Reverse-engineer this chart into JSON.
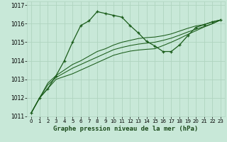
{
  "title": "Graphe pression niveau de la mer (hPa)",
  "bg_color": "#c8e8d8",
  "grid_color": "#b0d4c0",
  "line_color": "#1a5c1a",
  "marker_color": "#1a5c1a",
  "xlim": [
    -0.5,
    23.5
  ],
  "ylim": [
    1011,
    1017.2
  ],
  "xtick_vals": [
    0,
    1,
    2,
    3,
    4,
    5,
    6,
    7,
    8,
    9,
    10,
    11,
    12,
    13,
    14,
    15,
    16,
    17,
    18,
    19,
    20,
    21,
    22,
    23
  ],
  "ytick_vals": [
    1011,
    1012,
    1013,
    1014,
    1015,
    1016,
    1017
  ],
  "series": [
    [
      1011.2,
      1012.0,
      1012.5,
      1013.2,
      1014.0,
      1015.0,
      1015.9,
      1016.15,
      1016.65,
      1016.55,
      1016.45,
      1016.35,
      1015.9,
      1015.5,
      1015.05,
      1014.8,
      1014.5,
      1014.5,
      1014.85,
      1015.35,
      1015.8,
      1015.95,
      1016.1,
      1016.2
    ],
    [
      1011.2,
      1012.0,
      1012.8,
      1013.2,
      1013.5,
      1013.8,
      1014.0,
      1014.25,
      1014.5,
      1014.65,
      1014.85,
      1015.0,
      1015.1,
      1015.2,
      1015.25,
      1015.28,
      1015.35,
      1015.45,
      1015.6,
      1015.75,
      1015.88,
      1015.95,
      1016.1,
      1016.2
    ],
    [
      1011.2,
      1012.0,
      1012.7,
      1013.1,
      1013.35,
      1013.6,
      1013.8,
      1014.0,
      1014.2,
      1014.4,
      1014.6,
      1014.72,
      1014.82,
      1014.9,
      1014.95,
      1015.0,
      1015.1,
      1015.22,
      1015.38,
      1015.55,
      1015.7,
      1015.85,
      1016.0,
      1016.2
    ],
    [
      1011.2,
      1012.0,
      1012.5,
      1013.0,
      1013.15,
      1013.3,
      1013.5,
      1013.7,
      1013.9,
      1014.1,
      1014.3,
      1014.42,
      1014.52,
      1014.58,
      1014.62,
      1014.65,
      1014.82,
      1015.0,
      1015.2,
      1015.42,
      1015.62,
      1015.82,
      1016.0,
      1016.2
    ]
  ],
  "xlabel_color": "#1a4a1a",
  "xlabel_fontsize": 6.5,
  "tick_fontsize": 5.0,
  "ytick_fontsize": 5.5
}
